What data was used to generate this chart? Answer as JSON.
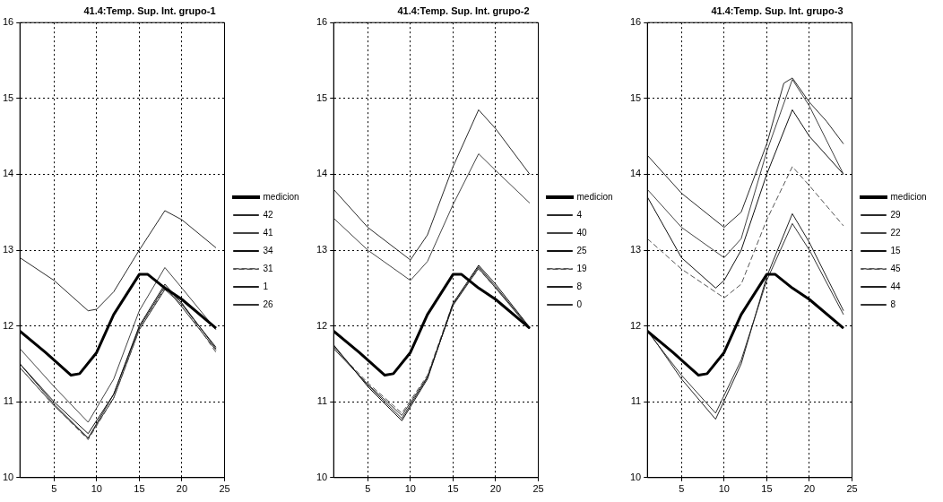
{
  "chart_data": [
    {
      "type": "line",
      "title": "41.4:Temp. Sup. Int. grupo-1",
      "xlim": [
        1,
        25
      ],
      "xticks": [
        5,
        10,
        15,
        20,
        25
      ],
      "ylim": [
        10,
        16
      ],
      "yticks": [
        10,
        11,
        12,
        13,
        14,
        15,
        16
      ],
      "grid": true,
      "legend": "right",
      "marker": "none",
      "line_style": "solid",
      "series": [
        {
          "name": "medicion",
          "color": "#000000",
          "x": [
            1,
            4,
            7,
            8,
            10,
            12,
            15,
            16,
            18,
            20,
            24
          ],
          "values": [
            11.93,
            11.65,
            11.35,
            11.37,
            11.65,
            12.15,
            12.68,
            12.68,
            12.5,
            12.35,
            11.97
          ]
        },
        {
          "name": "42",
          "color": "#2a2a2a",
          "x": [
            1,
            5,
            9,
            10,
            12,
            15,
            18,
            20,
            24
          ],
          "values": [
            12.9,
            12.6,
            12.2,
            12.22,
            12.45,
            13.0,
            13.52,
            13.4,
            13.03
          ]
        },
        {
          "name": "41",
          "color": "#444444",
          "x": [
            1,
            5,
            9,
            12,
            15,
            18,
            20,
            24
          ],
          "values": [
            11.7,
            11.2,
            10.73,
            11.3,
            12.2,
            12.77,
            12.5,
            11.95
          ]
        },
        {
          "name": "34",
          "color": "#111111",
          "x": [
            1,
            5,
            9,
            12,
            15,
            18,
            20,
            24
          ],
          "values": [
            11.5,
            11.0,
            10.58,
            11.1,
            12.0,
            12.55,
            12.3,
            11.7
          ]
        },
        {
          "name": "31",
          "color": "#555555",
          "line_style": "dashed",
          "x": [
            1,
            5,
            9,
            12,
            15,
            18,
            20,
            24
          ],
          "values": [
            11.45,
            10.95,
            10.5,
            11.05,
            11.95,
            12.5,
            12.3,
            11.65
          ]
        },
        {
          "name": "1",
          "color": "#222222",
          "x": [
            1,
            5,
            9,
            12,
            15,
            18,
            20,
            24
          ],
          "values": [
            11.5,
            10.97,
            10.52,
            11.1,
            11.98,
            12.52,
            12.25,
            11.68
          ]
        },
        {
          "name": "26",
          "color": "#333333",
          "x": [
            1,
            5,
            9,
            12,
            15,
            18,
            20,
            24
          ],
          "values": [
            11.45,
            10.95,
            10.52,
            11.05,
            11.95,
            12.48,
            12.28,
            11.72
          ]
        }
      ]
    },
    {
      "type": "line",
      "title": "41.4:Temp. Sup. Int. grupo-2",
      "xlim": [
        1,
        25
      ],
      "xticks": [
        5,
        10,
        15,
        20,
        25
      ],
      "ylim": [
        10,
        16
      ],
      "yticks": [
        10,
        11,
        12,
        13,
        14,
        15,
        16
      ],
      "grid": true,
      "legend": "right",
      "marker": "none",
      "line_style": "solid",
      "series": [
        {
          "name": "medicion",
          "color": "#000000",
          "x": [
            1,
            4,
            7,
            8,
            10,
            12,
            15,
            16,
            18,
            20,
            24
          ],
          "values": [
            11.93,
            11.65,
            11.35,
            11.37,
            11.65,
            12.15,
            12.68,
            12.68,
            12.5,
            12.35,
            11.97
          ]
        },
        {
          "name": "4",
          "color": "#2a2a2a",
          "x": [
            1,
            5,
            10,
            12,
            15,
            18,
            20,
            24
          ],
          "values": [
            13.8,
            13.3,
            12.87,
            13.2,
            14.1,
            14.85,
            14.6,
            14.0
          ]
        },
        {
          "name": "40",
          "color": "#444444",
          "x": [
            1,
            5,
            10,
            12,
            15,
            18,
            20,
            24
          ],
          "values": [
            13.42,
            13.0,
            12.6,
            12.85,
            13.6,
            14.27,
            14.05,
            13.62
          ]
        },
        {
          "name": "25",
          "color": "#111111",
          "x": [
            1,
            5,
            9,
            12,
            15,
            18,
            20,
            24
          ],
          "values": [
            11.75,
            11.2,
            10.75,
            11.3,
            12.3,
            12.8,
            12.55,
            11.98
          ]
        },
        {
          "name": "19",
          "color": "#555555",
          "line_style": "dashed",
          "x": [
            1,
            5,
            9,
            12,
            15,
            18,
            20,
            24
          ],
          "values": [
            11.72,
            11.25,
            10.85,
            11.35,
            12.3,
            12.75,
            12.5,
            11.98
          ]
        },
        {
          "name": "8",
          "color": "#222222",
          "x": [
            1,
            5,
            9,
            12,
            15,
            18,
            20,
            24
          ],
          "values": [
            11.73,
            11.22,
            10.78,
            11.32,
            12.28,
            12.78,
            12.52,
            11.97
          ]
        },
        {
          "name": "0",
          "color": "#333333",
          "x": [
            1,
            5,
            9,
            12,
            15,
            18,
            20,
            24
          ],
          "values": [
            11.7,
            11.23,
            10.82,
            11.33,
            12.27,
            12.76,
            12.5,
            11.96
          ]
        }
      ]
    },
    {
      "type": "line",
      "title": "41.4:Temp. Sup. Int. grupo-3",
      "xlim": [
        1,
        25
      ],
      "xticks": [
        5,
        10,
        15,
        20,
        25
      ],
      "ylim": [
        10,
        16
      ],
      "yticks": [
        10,
        11,
        12,
        13,
        14,
        15,
        16
      ],
      "grid": true,
      "legend": "right",
      "marker": "none",
      "line_style": "solid",
      "series": [
        {
          "name": "medicion",
          "color": "#000000",
          "x": [
            1,
            4,
            7,
            8,
            10,
            12,
            15,
            16,
            18,
            20,
            24
          ],
          "values": [
            11.93,
            11.65,
            11.35,
            11.37,
            11.65,
            12.15,
            12.68,
            12.68,
            12.5,
            12.35,
            11.97
          ]
        },
        {
          "name": "29",
          "color": "#2a2a2a",
          "x": [
            1,
            5,
            10,
            12,
            15,
            17,
            18,
            20,
            22,
            24
          ],
          "values": [
            14.25,
            13.75,
            13.3,
            13.5,
            14.4,
            15.2,
            15.27,
            14.95,
            14.7,
            14.4
          ]
        },
        {
          "name": "22",
          "color": "#444444",
          "x": [
            1,
            5,
            10,
            12,
            15,
            18,
            20,
            24
          ],
          "values": [
            13.8,
            13.3,
            12.9,
            13.15,
            14.3,
            15.25,
            14.9,
            14.0
          ]
        },
        {
          "name": "15",
          "color": "#111111",
          "x": [
            1,
            5,
            9,
            10,
            12,
            15,
            18,
            20,
            24
          ],
          "values": [
            13.7,
            12.9,
            12.5,
            12.6,
            13.0,
            14.0,
            14.85,
            14.5,
            14.0
          ]
        },
        {
          "name": "45",
          "color": "#555555",
          "line_style": "dashed",
          "x": [
            1,
            5,
            10,
            12,
            15,
            18,
            20,
            24
          ],
          "values": [
            13.15,
            12.75,
            12.37,
            12.55,
            13.4,
            14.1,
            13.85,
            13.32
          ]
        },
        {
          "name": "44",
          "color": "#222222",
          "x": [
            1,
            5,
            9,
            12,
            15,
            18,
            20,
            24
          ],
          "values": [
            11.95,
            11.3,
            10.77,
            11.5,
            12.65,
            13.48,
            13.1,
            12.2
          ]
        },
        {
          "name": "8",
          "color": "#333333",
          "x": [
            1,
            5,
            9,
            12,
            15,
            18,
            20,
            24
          ],
          "values": [
            11.93,
            11.35,
            10.85,
            11.55,
            12.6,
            13.35,
            13.0,
            12.15
          ]
        }
      ]
    }
  ]
}
